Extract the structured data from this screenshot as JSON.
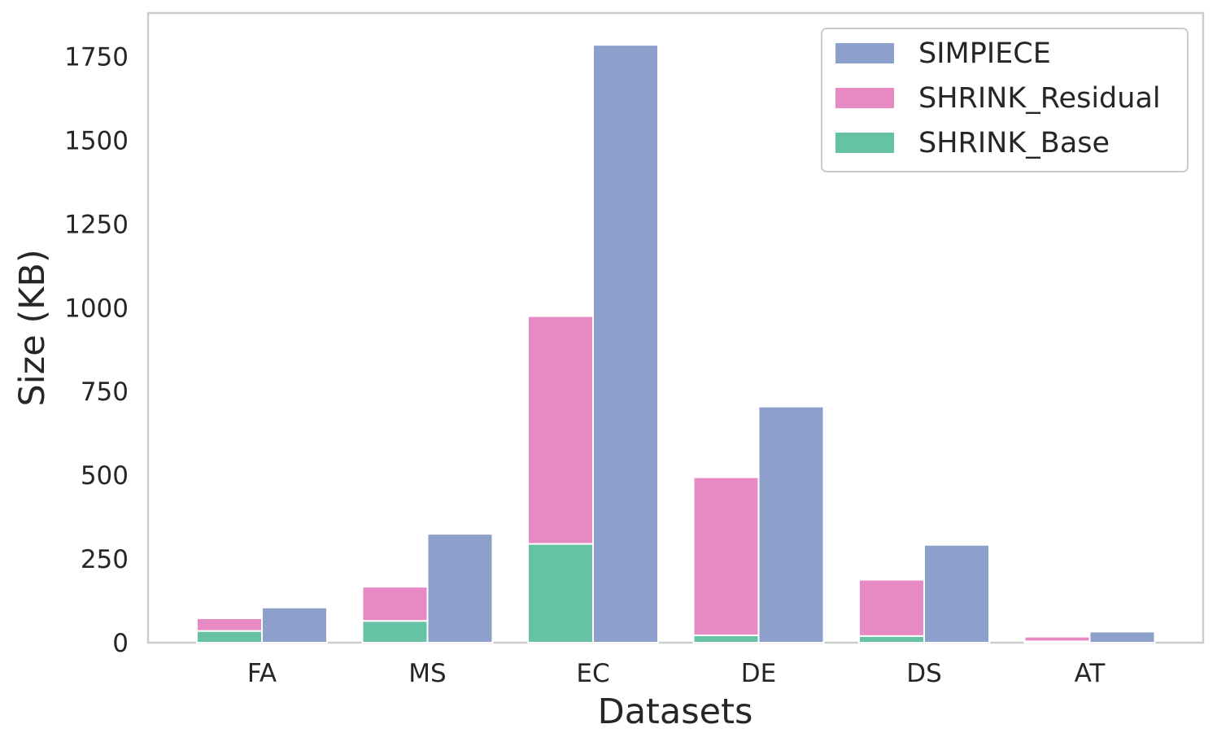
{
  "chart_data": {
    "type": "bar",
    "title": "",
    "xlabel": "Datasets",
    "ylabel": "Size (KB)",
    "categories": [
      "FA",
      "MS",
      "EC",
      "DE",
      "DS",
      "AT"
    ],
    "ylim": [
      0,
      1880
    ],
    "yticks": [
      0,
      250,
      500,
      750,
      1000,
      1250,
      1500,
      1750
    ],
    "grid": false,
    "legend_position": "top-right",
    "stacked_group": {
      "series": [
        {
          "name": "SHRINK_Base",
          "color": "#66c2a5",
          "values": [
            35,
            65,
            295,
            22,
            20,
            4
          ]
        },
        {
          "name": "SHRINK_Residual",
          "color": "#e78ac3",
          "values": [
            38,
            102,
            680,
            472,
            168,
            14
          ]
        }
      ]
    },
    "side_series": [
      {
        "name": "SIMPIECE",
        "color": "#8da0cb",
        "values": [
          105,
          325,
          1785,
          705,
          292,
          33
        ]
      }
    ],
    "legend": [
      {
        "name": "SIMPIECE",
        "color": "#8da0cb"
      },
      {
        "name": "SHRINK_Residual",
        "color": "#e78ac3"
      },
      {
        "name": "SHRINK_Base",
        "color": "#66c2a5"
      }
    ]
  }
}
